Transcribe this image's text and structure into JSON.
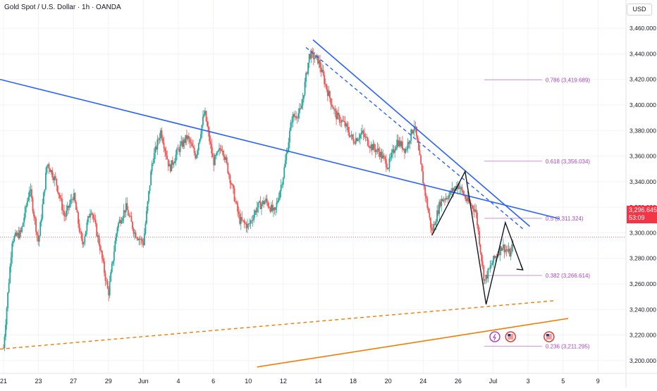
{
  "header": {
    "title": "Gold Spot / U.S. Dollar · 1h · OANDA",
    "currency": "USD"
  },
  "price_tag": {
    "price": "3,296.645",
    "countdown": "53:09"
  },
  "colors": {
    "up": "#26a69a",
    "down": "#ef5350",
    "trend_blue": "#2962ff",
    "support_orange": "#f57c00",
    "fib": "#ce93d8",
    "price_line": "#f23645"
  },
  "icons": [
    "lightning-icon",
    "us-flag-icon",
    "us-flag-icon"
  ],
  "chart_data": {
    "type": "line",
    "ylim": [
      3190,
      3470
    ],
    "y_ticks": [
      "3,200.000",
      "3,220.000",
      "3,240.000",
      "3,260.000",
      "3,280.000",
      "3,300.000",
      "3,320.000",
      "3,340.000",
      "3,360.000",
      "3,380.000",
      "3,400.000",
      "3,420.000",
      "3,440.000",
      "3,460.000"
    ],
    "y_tick_values": [
      3200,
      3220,
      3240,
      3260,
      3280,
      3300,
      3320,
      3340,
      3360,
      3380,
      3400,
      3420,
      3440,
      3460
    ],
    "x_ticks": [
      "21",
      "23",
      "27",
      "29",
      "Jun",
      "4",
      "6",
      "10",
      "12",
      "14",
      "18",
      "20",
      "24",
      "26",
      "Jul",
      "3",
      "5",
      "9"
    ],
    "x_tick_index": [
      0,
      2,
      4,
      6,
      8,
      10,
      12,
      14,
      16,
      18,
      20,
      22,
      24,
      26,
      28,
      30,
      32,
      34
    ],
    "x_index_span": [
      -0.2,
      35.6
    ],
    "close_series": [
      [
        0,
        3210
      ],
      [
        0.5,
        3295
      ],
      [
        1,
        3300
      ],
      [
        1.5,
        3335
      ],
      [
        2,
        3292
      ],
      [
        2.5,
        3355
      ],
      [
        3,
        3340
      ],
      [
        3.5,
        3312
      ],
      [
        4,
        3330
      ],
      [
        4.5,
        3290
      ],
      [
        5,
        3320
      ],
      [
        5.5,
        3290
      ],
      [
        6,
        3252
      ],
      [
        6.5,
        3305
      ],
      [
        7,
        3320
      ],
      [
        7.5,
        3300
      ],
      [
        8,
        3292
      ],
      [
        8.5,
        3355
      ],
      [
        9,
        3380
      ],
      [
        9.5,
        3350
      ],
      [
        10,
        3365
      ],
      [
        10.5,
        3375
      ],
      [
        11,
        3360
      ],
      [
        11.5,
        3395
      ],
      [
        12,
        3355
      ],
      [
        12.5,
        3368
      ],
      [
        13,
        3340
      ],
      [
        13.5,
        3310
      ],
      [
        14,
        3305
      ],
      [
        14.5,
        3320
      ],
      [
        15,
        3325
      ],
      [
        15.5,
        3315
      ],
      [
        16,
        3345
      ],
      [
        16.5,
        3390
      ],
      [
        17,
        3395
      ],
      [
        17.5,
        3440
      ],
      [
        18,
        3435
      ],
      [
        18.5,
        3412
      ],
      [
        19,
        3392
      ],
      [
        19.5,
        3385
      ],
      [
        20,
        3372
      ],
      [
        20.5,
        3378
      ],
      [
        21,
        3368
      ],
      [
        21.5,
        3363
      ],
      [
        22,
        3352
      ],
      [
        22.5,
        3372
      ],
      [
        23,
        3365
      ],
      [
        23.5,
        3385
      ],
      [
        24,
        3340
      ],
      [
        24.5,
        3300
      ],
      [
        25,
        3325
      ],
      [
        25.5,
        3330
      ],
      [
        26,
        3338
      ],
      [
        26.5,
        3325
      ],
      [
        27,
        3318
      ],
      [
        27.5,
        3262
      ],
      [
        28,
        3278
      ],
      [
        28.5,
        3290
      ],
      [
        29,
        3283
      ],
      [
        29.2,
        3296.645
      ]
    ],
    "annotations": [
      {
        "label": "0.786 (3,419.689)",
        "level": 3419.689
      },
      {
        "label": "0.618 (3,356.034)",
        "level": 3356.034
      },
      {
        "label": "0.5 (3,311.324)",
        "level": 3311.324
      },
      {
        "label": "0.382 (3,266.614)",
        "level": 3266.614
      },
      {
        "label": "0.236 (3,211.295)",
        "level": 3211.295
      }
    ],
    "current_price": 3296.645,
    "grid": true,
    "legend": "none"
  }
}
